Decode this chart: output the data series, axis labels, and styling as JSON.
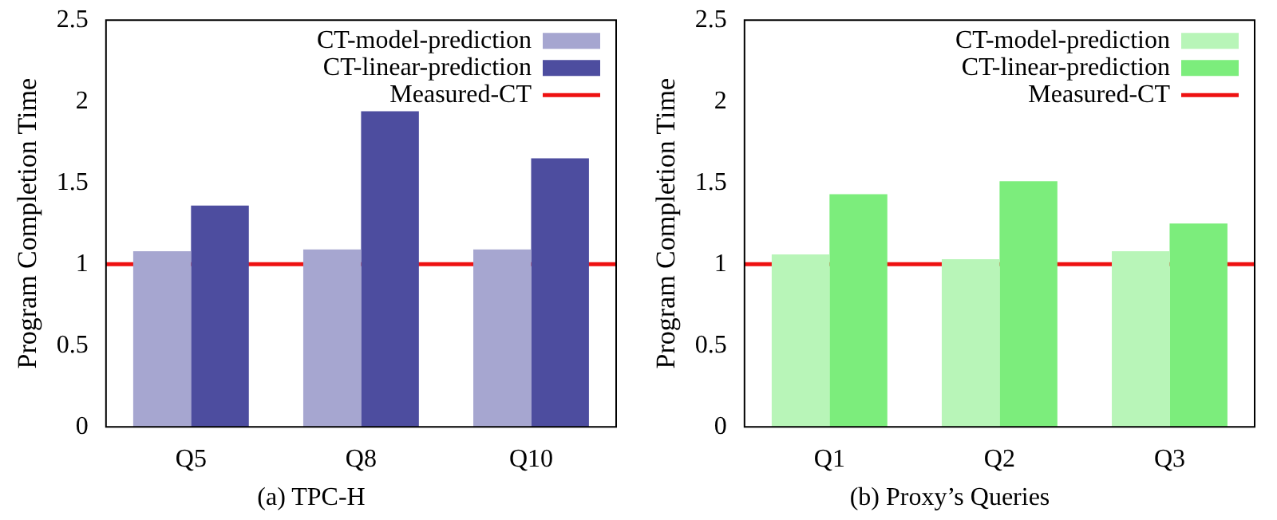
{
  "chart_data": [
    {
      "type": "bar",
      "title": "(a) TPC-H",
      "ylabel": "Program Completion Time",
      "categories": [
        "Q5",
        "Q8",
        "Q10"
      ],
      "series": [
        {
          "name": "CT-model-prediction",
          "color": "#a6a6d0",
          "values": [
            1.08,
            1.09,
            1.09
          ]
        },
        {
          "name": "CT-linear-prediction",
          "color": "#4d4d9f",
          "values": [
            1.36,
            1.94,
            1.65
          ]
        }
      ],
      "ylim": [
        0,
        2.5
      ],
      "yticks": [
        0,
        0.5,
        1,
        1.5,
        2,
        2.5
      ],
      "legend": "top right",
      "ref_lines": [
        {
          "axis": "y",
          "value": 1,
          "label": "Measured-CT",
          "color": "#ee1111"
        }
      ]
    },
    {
      "type": "bar",
      "title": "(b) Proxy’s Queries",
      "ylabel": "Program Completion Time",
      "categories": [
        "Q1",
        "Q2",
        "Q3"
      ],
      "series": [
        {
          "name": "CT-model-prediction",
          "color": "#b8f5b8",
          "values": [
            1.06,
            1.03,
            1.08
          ]
        },
        {
          "name": "CT-linear-prediction",
          "color": "#7ced7c",
          "values": [
            1.43,
            1.51,
            1.25
          ]
        }
      ],
      "ylim": [
        0,
        2.5
      ],
      "yticks": [
        0,
        0.5,
        1,
        1.5,
        2,
        2.5
      ],
      "legend": "top right",
      "ref_lines": [
        {
          "axis": "y",
          "value": 1,
          "label": "Measured-CT",
          "color": "#ee1111"
        }
      ]
    }
  ]
}
